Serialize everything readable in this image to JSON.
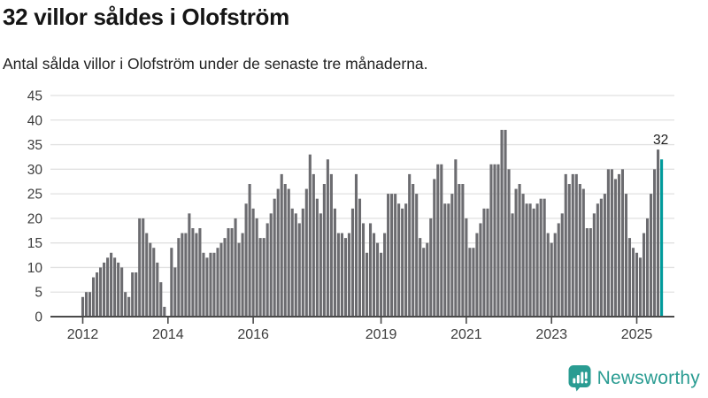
{
  "header": {
    "title": "32 villor såldes i Olofström",
    "subtitle": "Antal sålda villor i Olofström under de senaste tre månaderna."
  },
  "chart_data": {
    "type": "bar",
    "title": "32 villor såldes i Olofström",
    "subtitle": "Antal sålda villor i Olofström under de senaste tre månaderna.",
    "x_start": "2012-01",
    "x_step": "month",
    "values": [
      4,
      5,
      5,
      8,
      9,
      10,
      11,
      12,
      13,
      12,
      11,
      10,
      5,
      4,
      9,
      9,
      20,
      20,
      17,
      15,
      14,
      11,
      7,
      2,
      0,
      14,
      10,
      16,
      17,
      17,
      21,
      18,
      17,
      18,
      13,
      12,
      13,
      13,
      14,
      15,
      16,
      18,
      18,
      20,
      15,
      17,
      23,
      27,
      22,
      20,
      16,
      16,
      19,
      21,
      24,
      26,
      29,
      27,
      26,
      22,
      21,
      19,
      22,
      26,
      33,
      29,
      24,
      21,
      27,
      32,
      29,
      22,
      17,
      17,
      16,
      17,
      22,
      29,
      24,
      19,
      13,
      19,
      17,
      15,
      13,
      17,
      25,
      25,
      25,
      23,
      22,
      23,
      29,
      27,
      25,
      16,
      14,
      15,
      20,
      28,
      31,
      31,
      23,
      23,
      25,
      32,
      27,
      27,
      20,
      14,
      14,
      17,
      19,
      22,
      22,
      31,
      31,
      31,
      38,
      38,
      30,
      21,
      26,
      27,
      25,
      23,
      23,
      22,
      23,
      24,
      24,
      17,
      15,
      17,
      19,
      21,
      29,
      27,
      29,
      29,
      27,
      26,
      18,
      18,
      21,
      23,
      24,
      25,
      30,
      30,
      28,
      29,
      30,
      25,
      16,
      14,
      13,
      12,
      17,
      20,
      25,
      30,
      34,
      32
    ],
    "highlight_index": 163,
    "annotation": {
      "text": "32"
    },
    "yticks": [
      0,
      5,
      10,
      15,
      20,
      25,
      30,
      35,
      40,
      45
    ],
    "ylim": [
      0,
      45
    ],
    "xticks": [
      {
        "label": "2012",
        "index": 0
      },
      {
        "label": "2014",
        "index": 24
      },
      {
        "label": "2016",
        "index": 48
      },
      {
        "label": "2019",
        "index": 84
      },
      {
        "label": "2021",
        "index": 108
      },
      {
        "label": "2023",
        "index": 132
      },
      {
        "label": "2025",
        "index": 156
      }
    ],
    "grid": true,
    "legend": "none",
    "colors": {
      "bar": "#6c6c70",
      "highlight": "#009a9b",
      "grid": "#e1e1e1",
      "axis": "#4a4a4a",
      "tick_text": "#3d3d3d",
      "annotation": "#1a1a1a"
    }
  },
  "footer": {
    "brand": "Newsworthy",
    "brand_color": "#2a9c92"
  }
}
